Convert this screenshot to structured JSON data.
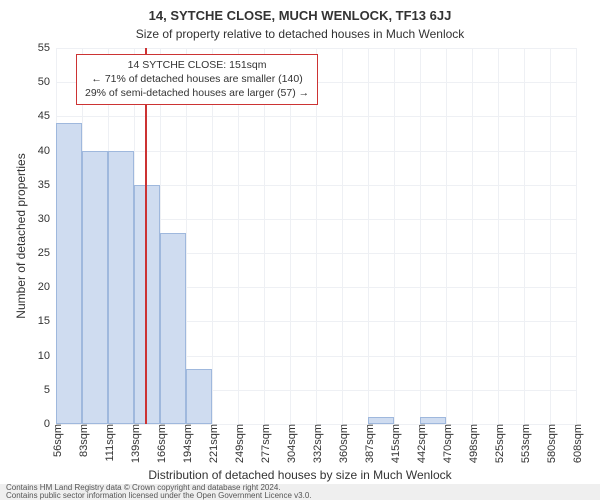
{
  "title_main": "14, SYTCHE CLOSE, MUCH WENLOCK, TF13 6JJ",
  "title_sub": "Size of property relative to detached houses in Much Wenlock",
  "ylabel": "Number of detached properties",
  "xlabel": "Distribution of detached houses by size in Much Wenlock",
  "footer_line1": "Contains HM Land Registry data © Crown copyright and database right 2024.",
  "footer_line2": "Contains public sector information licensed under the Open Government Licence v3.0.",
  "callout": {
    "line1": "14 SYTCHE CLOSE: 151sqm",
    "line2": "← 71% of detached houses are smaller (140)",
    "line3": "29% of semi-detached houses are larger (57) →"
  },
  "chart": {
    "type": "histogram",
    "ylim": [
      0,
      55
    ],
    "ytick_step": 5,
    "yticks": [
      0,
      5,
      10,
      15,
      20,
      25,
      30,
      35,
      40,
      45,
      50,
      55
    ],
    "xtick_labels": [
      "56sqm",
      "83sqm",
      "111sqm",
      "139sqm",
      "166sqm",
      "194sqm",
      "221sqm",
      "249sqm",
      "277sqm",
      "304sqm",
      "332sqm",
      "360sqm",
      "387sqm",
      "415sqm",
      "442sqm",
      "470sqm",
      "498sqm",
      "525sqm",
      "553sqm",
      "580sqm",
      "608sqm"
    ],
    "bar_values": [
      44,
      40,
      40,
      35,
      28,
      8,
      0,
      0,
      0,
      0,
      0,
      0,
      1,
      0,
      1,
      0,
      0,
      0,
      0,
      0
    ],
    "bar_fill": "#cfdcf0",
    "bar_stroke": "#9fb8dd",
    "grid_color": "#eef0f4",
    "background_color": "#ffffff",
    "ref_line_value": 151,
    "ref_line_color": "#cc3333",
    "x_domain": [
      56,
      608
    ],
    "title_fontsize": 13,
    "label_fontsize": 12,
    "tick_fontsize": 11
  }
}
